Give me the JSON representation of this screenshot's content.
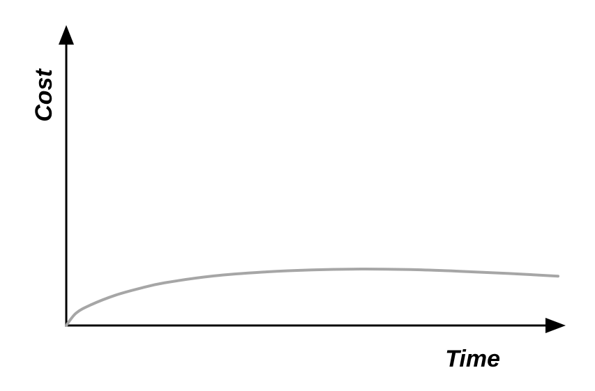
{
  "chart_data": {
    "type": "line",
    "title": "",
    "xlabel": "Time",
    "ylabel": "Cost",
    "grid": false,
    "legend": "none",
    "xlim": [
      0,
      100
    ],
    "ylim": [
      0,
      100
    ],
    "series": [
      {
        "color": "#a6a6a6",
        "x": [
          0,
          2,
          5,
          10,
          15,
          20,
          30,
          40,
          50,
          60,
          70,
          80,
          90,
          100
        ],
        "y": [
          0,
          4.5,
          7.5,
          11,
          13.5,
          15.5,
          18,
          19.4,
          20.2,
          20.5,
          20.3,
          19.7,
          18.9,
          17.9
        ]
      }
    ]
  },
  "colors": {
    "axis": "#000000",
    "curve": "#a6a6a6",
    "background": "#ffffff"
  }
}
